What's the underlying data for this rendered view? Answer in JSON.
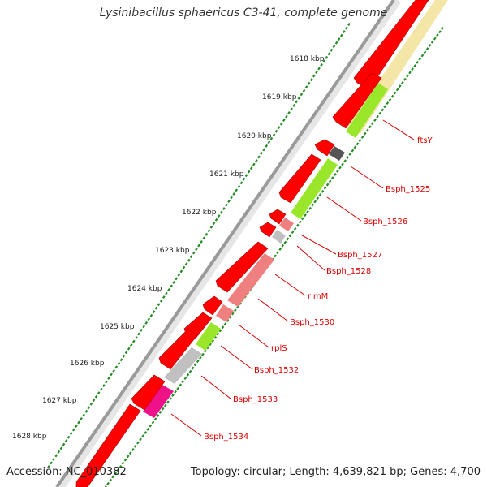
{
  "title": "Lysinibacillus sphaericus C3-41, complete genome",
  "footer": {
    "accession": "Accession: NC_010382",
    "summary": "Topology: circular; Length: 4,639,821 bp; Genes: 4,700"
  },
  "ticks": [
    "1618 kbp",
    "1619 kbp",
    "1620 kbp",
    "1621 kbp",
    "1622 kbp",
    "1623 kbp",
    "1624 kbp",
    "1625 kbp",
    "1626 kbp",
    "1627 kbp",
    "1628 kbp"
  ],
  "genes": [
    "ftsY",
    "Bsph_1525",
    "Bsph_1526",
    "Bsph_1527",
    "Bsph_1528",
    "rimM",
    "Bsph_1530",
    "rplS",
    "Bsph_1532",
    "Bsph_1533",
    "Bsph_1534"
  ],
  "colors": {
    "backbone": "#9a9a9a",
    "forward_cds": "#ff0000",
    "label_red": "#dd0000",
    "tick_green": "#228b22"
  }
}
